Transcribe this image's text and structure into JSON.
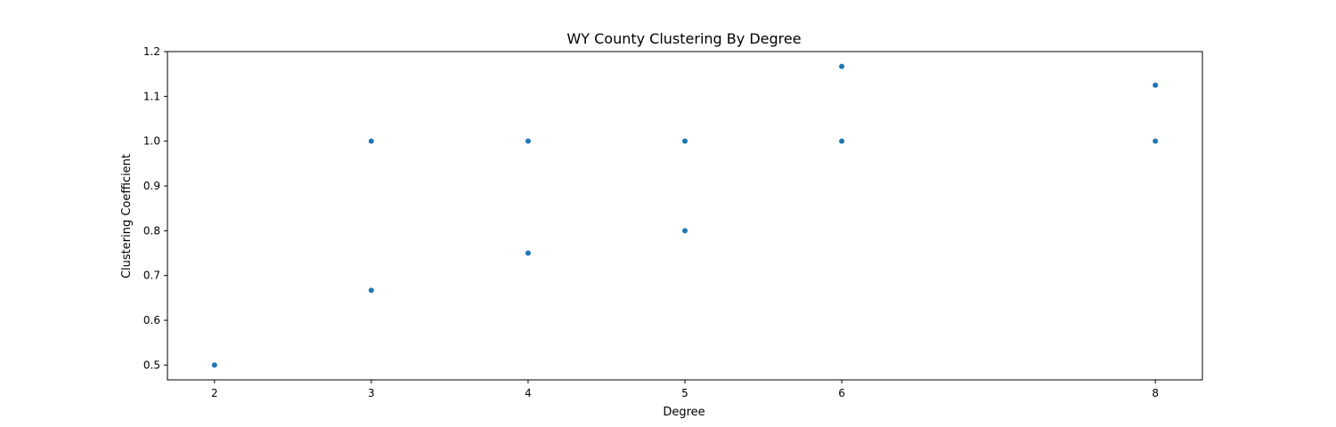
{
  "chart_data": {
    "type": "scatter",
    "title": "WY County Clustering By Degree",
    "xlabel": "Degree",
    "ylabel": "Clustering Coefficient",
    "xlim": [
      1.7,
      8.3
    ],
    "ylim": [
      0.467,
      1.2
    ],
    "x_ticks": [
      2,
      3,
      4,
      5,
      6,
      8
    ],
    "y_ticks": [
      0.5,
      0.6,
      0.7,
      0.8,
      0.9,
      1.0,
      1.1,
      1.2
    ],
    "y_tick_labels": [
      "0.5",
      "0.6",
      "0.7",
      "0.8",
      "0.9",
      "1.0",
      "1.1",
      "1.2"
    ],
    "grid": false,
    "point_color": "#1f77b4",
    "points": [
      {
        "x": 2,
        "y": 0.5
      },
      {
        "x": 3,
        "y": 0.667
      },
      {
        "x": 3,
        "y": 1.0
      },
      {
        "x": 4,
        "y": 0.75
      },
      {
        "x": 4,
        "y": 1.0
      },
      {
        "x": 5,
        "y": 0.8
      },
      {
        "x": 5,
        "y": 1.0
      },
      {
        "x": 6,
        "y": 1.0
      },
      {
        "x": 6,
        "y": 1.167
      },
      {
        "x": 8,
        "y": 1.0
      },
      {
        "x": 8,
        "y": 1.125
      }
    ]
  }
}
